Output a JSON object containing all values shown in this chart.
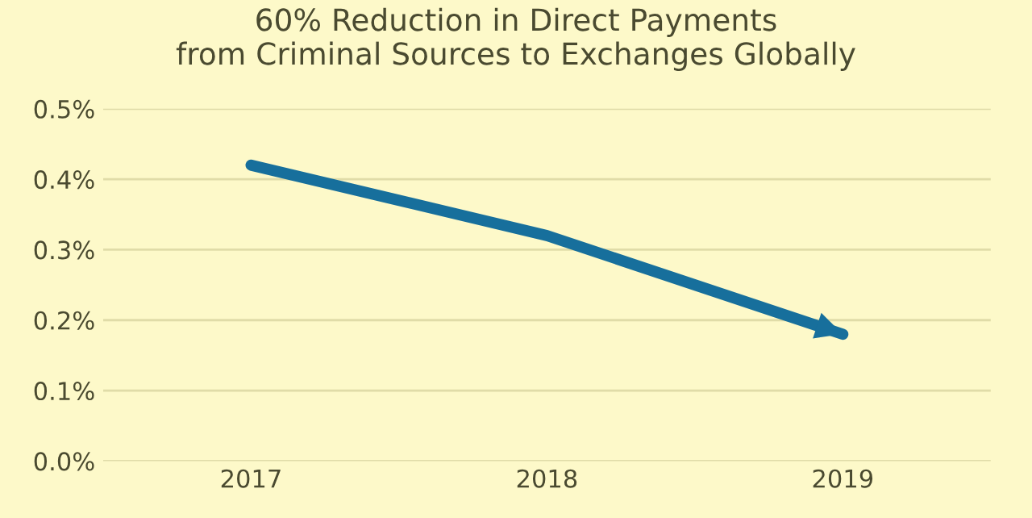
{
  "chart_data": {
    "type": "line",
    "title": "60% Reduction in Direct Payments\nfrom Criminal Sources to Exchanges Globally",
    "categories": [
      "2017",
      "2018",
      "2019"
    ],
    "series": [
      {
        "color": "#176f9c",
        "values": [
          0.42,
          0.32,
          0.18
        ]
      }
    ],
    "ylim": [
      0,
      0.5
    ],
    "yticks": [
      {
        "value": 0,
        "label": "0.0%"
      },
      {
        "value": 0.1,
        "label": "0.1%"
      },
      {
        "value": 0.2,
        "label": "0.2%"
      },
      {
        "value": 0.3,
        "label": "0.3%"
      },
      {
        "value": 0.4,
        "label": "0.4%"
      },
      {
        "value": 0.5,
        "label": "0.5%"
      }
    ],
    "grid": "y",
    "line_style": "solid",
    "marker": "none"
  }
}
